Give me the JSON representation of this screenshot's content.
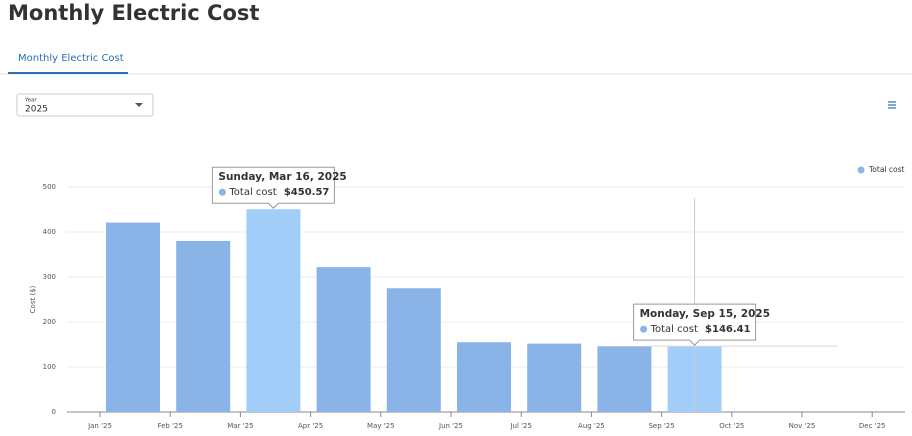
{
  "header": {
    "title": "Monthly Electric Cost"
  },
  "tab": {
    "label": "Monthly Electric Cost"
  },
  "dropdown": {
    "label": "Year",
    "value": "2025"
  },
  "chart_data": {
    "type": "bar",
    "categories": [
      "Jan '25",
      "Feb '25",
      "Mar '25",
      "Apr '25",
      "May '25",
      "Jun '25",
      "Jul '25",
      "Aug '25",
      "Sep '25",
      "Oct '25",
      "Nov '25",
      "Dec '25"
    ],
    "series": [
      {
        "name": "Total cost",
        "color": "#8ab4e8",
        "highlight_color": "#a3cdf9",
        "values": [
          421,
          380,
          450.57,
          322,
          275,
          155,
          152,
          146,
          146.41,
          null,
          null,
          null
        ],
        "value_labels": [
          null,
          null,
          "$450.57",
          null,
          null,
          null,
          null,
          null,
          "$146.41",
          null,
          null,
          null
        ],
        "tooltip_titles": [
          null,
          null,
          "Sunday, Mar 16, 2025",
          null,
          null,
          null,
          null,
          null,
          "Monday, Sep 15, 2025",
          null,
          null,
          null
        ]
      }
    ],
    "y_label": "Cost ($)",
    "ylim": [
      0,
      500
    ],
    "yticks": [
      0,
      100,
      200,
      300,
      400,
      500
    ],
    "grid": true,
    "legend": "top-right"
  }
}
